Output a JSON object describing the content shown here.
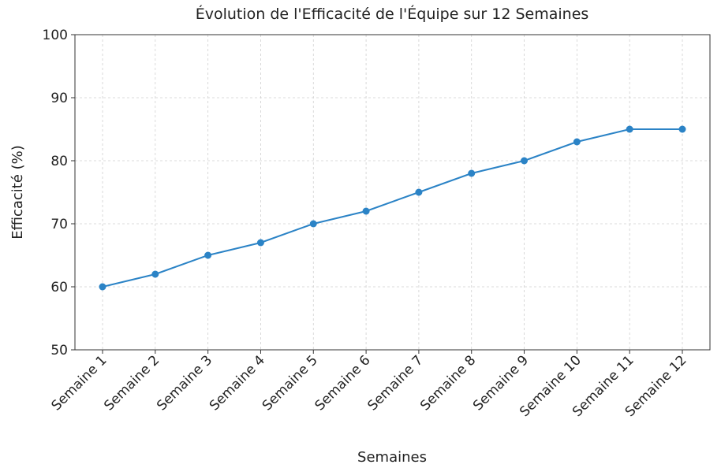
{
  "chart_data": {
    "type": "line",
    "title": "Évolution de l'Efficacité de l'Équipe sur 12 Semaines",
    "x_label": "Semaines",
    "y_label": "Efficacité (%)",
    "categories": [
      "Semaine 1",
      "Semaine 2",
      "Semaine 3",
      "Semaine 4",
      "Semaine 5",
      "Semaine 6",
      "Semaine 7",
      "Semaine 8",
      "Semaine 9",
      "Semaine 10",
      "Semaine 11",
      "Semaine 12"
    ],
    "series": [
      {
        "name": "Efficacité",
        "color": "#2b83c6",
        "values": [
          60,
          62,
          65,
          67,
          70,
          72,
          75,
          78,
          80,
          83,
          85,
          85
        ]
      }
    ],
    "ylim": [
      50,
      100
    ],
    "yticks": [
      50,
      60,
      70,
      80,
      90,
      100
    ],
    "grid": true
  }
}
